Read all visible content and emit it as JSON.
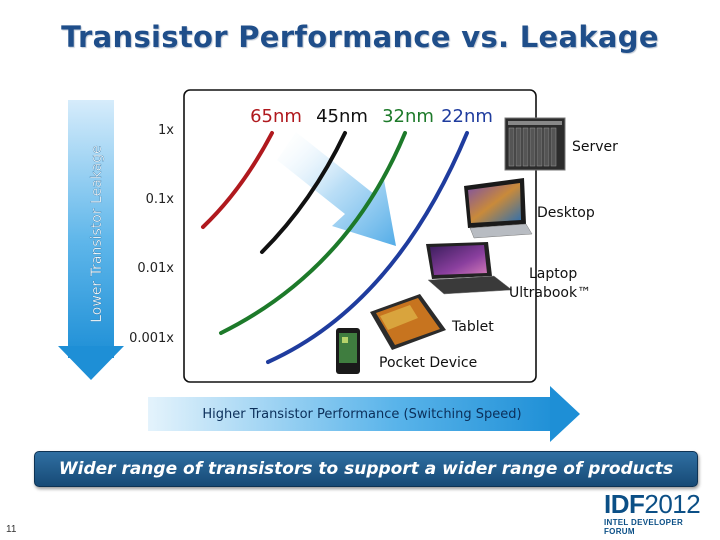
{
  "slide": {
    "title": "Transistor Performance vs. Leakage",
    "banner": "Wider range of transistors to support a wider range of products",
    "page_number": "11",
    "logo": {
      "brand": "IDF2012",
      "brand_prefix": "IDF",
      "brand_year": "2012",
      "subtitle": "INTEL DEVELOPER FORUM"
    }
  },
  "chart_data": {
    "type": "line",
    "title": "",
    "ylabel": "Lower Transistor Leakage",
    "xlabel": "Higher Transistor Performance (Switching Speed)",
    "y_scale": "log",
    "y_ticks": [
      "1x",
      "0.1x",
      "0.01x",
      "0.001x"
    ],
    "series": [
      {
        "name": "65nm",
        "color": "#b0191e"
      },
      {
        "name": "45nm",
        "color": "#111111"
      },
      {
        "name": "32nm",
        "color": "#1d7a2a"
      },
      {
        "name": "22nm",
        "color": "#1f3c9e"
      }
    ],
    "products": [
      {
        "label": "Server",
        "icon": "server-icon"
      },
      {
        "label": "Desktop",
        "icon": "desktop-icon"
      },
      {
        "label": "Laptop\nUltrabook™",
        "label_lines": [
          "Laptop",
          "Ultrabook™"
        ],
        "icon": "laptop-icon"
      },
      {
        "label": "Tablet",
        "icon": "tablet-icon"
      },
      {
        "label": "Pocket Device",
        "icon": "phone-icon"
      }
    ]
  }
}
